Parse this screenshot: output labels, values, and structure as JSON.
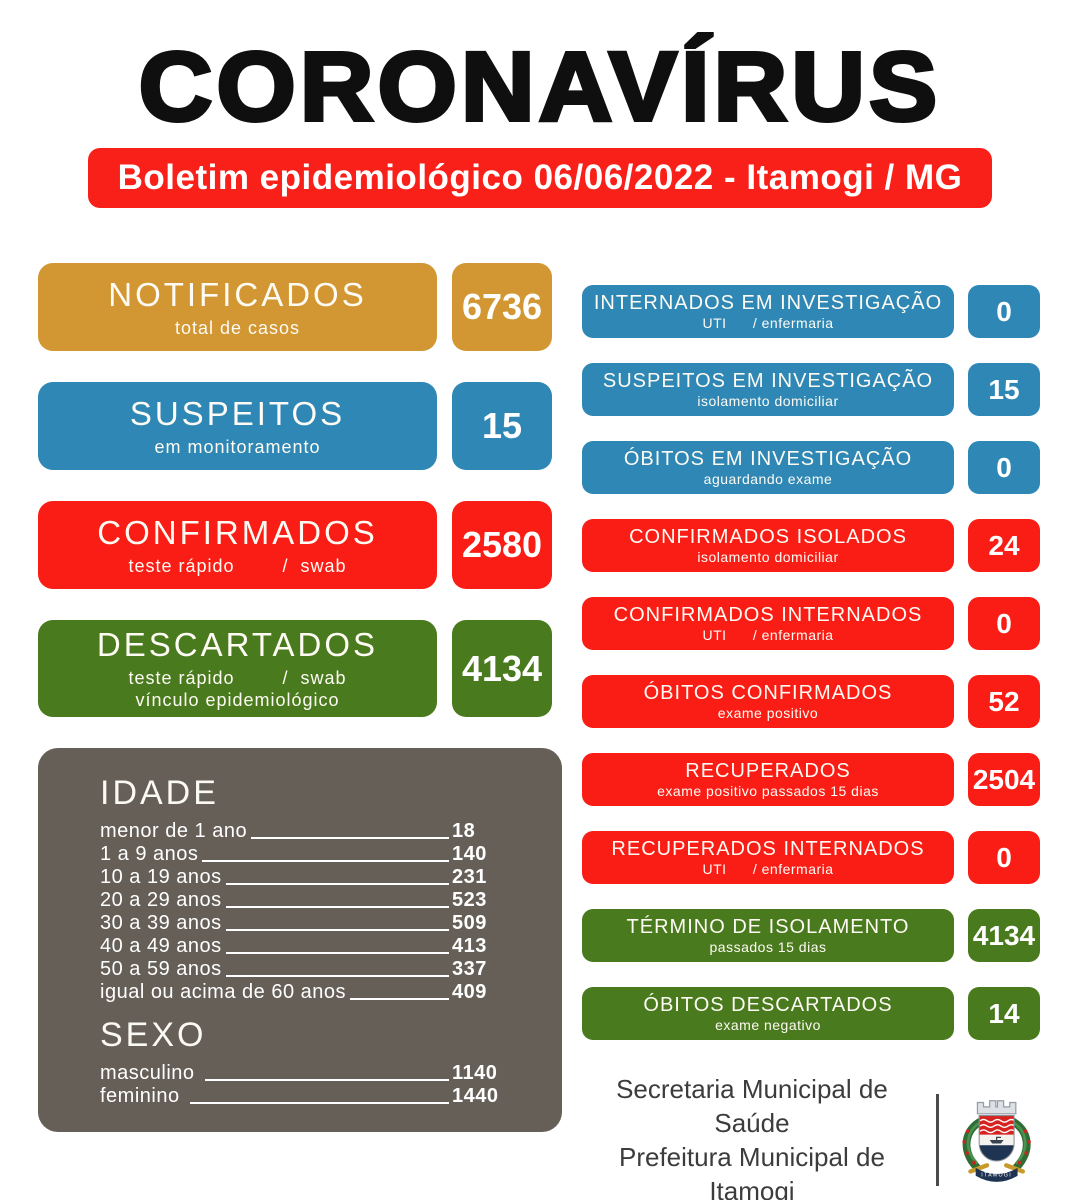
{
  "header": {
    "title": "CORONAVÍRUS",
    "banner": "Boletim epidemiológico 06/06/2022 - Itamogi / MG"
  },
  "summary_cards": [
    {
      "id": "notificados",
      "title": "NOTIFICADOS",
      "subtitles": [
        "total de casos"
      ],
      "value": "6736",
      "color": "#d29733"
    },
    {
      "id": "suspeitos",
      "title": "SUSPEITOS",
      "subtitles": [
        "em monitoramento"
      ],
      "value": "15",
      "color": "#2e87b5"
    },
    {
      "id": "confirmados",
      "title": "CONFIRMADOS",
      "subtitles": [
        "teste rápido        /  swab"
      ],
      "value": "2580",
      "color": "#fa1d16"
    },
    {
      "id": "descartados",
      "title": "DESCARTADOS",
      "subtitles": [
        "teste rápido        /  swab",
        "vínculo epidemiológico"
      ],
      "value": "4134",
      "color": "#4a7a1e"
    }
  ],
  "detail_cards": [
    {
      "id": "internados-em-investigacao",
      "title": "INTERNADOS EM INVESTIGAÇÃO",
      "subtitle": "UTI      / enfermaria",
      "value": "0",
      "color": "#2e87b5"
    },
    {
      "id": "suspeitos-em-investigacao",
      "title": "SUSPEITOS EM INVESTIGAÇÃO",
      "subtitle": "isolamento domiciliar",
      "value": "15",
      "color": "#2e87b5"
    },
    {
      "id": "obitos-em-investigacao",
      "title": "ÓBITOS EM INVESTIGAÇÃO",
      "subtitle": "aguardando exame",
      "value": "0",
      "color": "#2e87b5"
    },
    {
      "id": "confirmados-isolados",
      "title": "CONFIRMADOS ISOLADOS",
      "subtitle": "isolamento domiciliar",
      "value": "24",
      "color": "#fa1d16"
    },
    {
      "id": "confirmados-internados",
      "title": "CONFIRMADOS INTERNADOS",
      "subtitle": "UTI      / enfermaria",
      "value": "0",
      "color": "#fa1d16"
    },
    {
      "id": "obitos-confirmados",
      "title": "ÓBITOS CONFIRMADOS",
      "subtitle": "exame positivo",
      "value": "52",
      "color": "#fa1d16"
    },
    {
      "id": "recuperados",
      "title": "RECUPERADOS",
      "subtitle": "exame positivo passados 15 dias",
      "value": "2504",
      "color": "#fa1d16"
    },
    {
      "id": "recuperados-internados",
      "title": "RECUPERADOS INTERNADOS",
      "subtitle": "UTI      / enfermaria",
      "value": "0",
      "color": "#fa1d16"
    },
    {
      "id": "termino-de-isolamento",
      "title": "TÉRMINO DE ISOLAMENTO",
      "subtitle": "passados 15 dias",
      "value": "4134",
      "color": "#4a7a1e"
    },
    {
      "id": "obitos-descartados",
      "title": "ÓBITOS DESCARTADOS",
      "subtitle": "exame negativo",
      "value": "14",
      "color": "#4a7a1e"
    }
  ],
  "demographics": {
    "box_color": "#655f58",
    "age": {
      "heading": "IDADE",
      "rows": [
        {
          "label": "menor de 1 ano",
          "value": "18"
        },
        {
          "label": "1 a 9 anos",
          "value": "140"
        },
        {
          "label": "10 a 19 anos",
          "value": "231"
        },
        {
          "label": "20 a 29 anos",
          "value": "523"
        },
        {
          "label": "30 a 39 anos",
          "value": "509"
        },
        {
          "label": "40 a 49 anos",
          "value": "413"
        },
        {
          "label": "50 a 59 anos",
          "value": "337"
        },
        {
          "label": "igual ou acima de 60 anos",
          "value": "409"
        }
      ]
    },
    "sex": {
      "heading": "SEXO",
      "rows": [
        {
          "label": "masculino ",
          "value": "1140"
        },
        {
          "label": "feminino ",
          "value": "1440"
        }
      ]
    }
  },
  "footer": {
    "line1": "Secretaria Municipal de Saúde",
    "line2": "Prefeitura Municipal de Itamogi",
    "crest_banner": "ITAMOGI"
  },
  "colors": {
    "accent_orange": "#d29733",
    "accent_blue": "#2e87b5",
    "accent_red": "#fa1d16",
    "accent_green": "#4a7a1e",
    "demographics_gray": "#655f58",
    "banner_red": "#f9201a",
    "title_black": "#0f0f0f"
  }
}
